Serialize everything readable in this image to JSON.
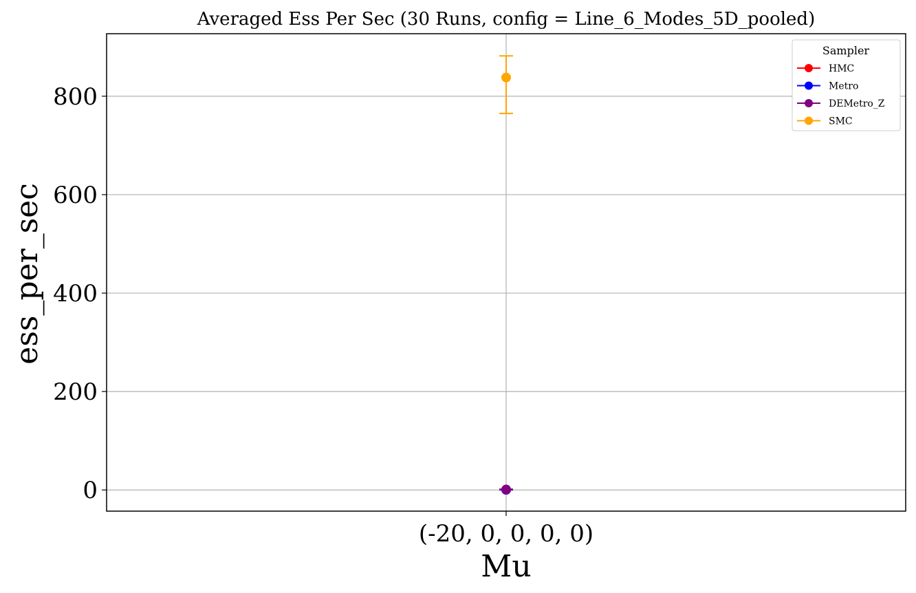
{
  "chart_data": {
    "type": "scatter",
    "title": "Averaged Ess Per Sec (30 Runs, config = Line_6_Modes_5D_pooled)",
    "xlabel": "Mu",
    "ylabel": "ess_per_sec",
    "categories": [
      "(-20, 0, 0, 0, 0)"
    ],
    "ylim": [
      -43,
      927
    ],
    "yticks": [
      0,
      200,
      400,
      600,
      800
    ],
    "grid": true,
    "legend": {
      "title": "Sampler",
      "placement": "top-right",
      "entries": [
        "HMC",
        "Metro",
        "DEMetro_Z",
        "SMC"
      ]
    },
    "series": [
      {
        "name": "HMC",
        "color": "#ff0000",
        "values": [
          0.5
        ],
        "err_low": [
          0.4
        ],
        "err_high": [
          0.6
        ]
      },
      {
        "name": "Metro",
        "color": "#0000ff",
        "values": [
          0.3
        ],
        "err_low": [
          0.2
        ],
        "err_high": [
          0.4
        ]
      },
      {
        "name": "DEMetro_Z",
        "color": "#800080",
        "values": [
          1.0
        ],
        "err_low": [
          0.5
        ],
        "err_high": [
          1.5
        ]
      },
      {
        "name": "SMC",
        "color": "#ffa500",
        "values": [
          838
        ],
        "err_low": [
          765
        ],
        "err_high": [
          882
        ]
      }
    ]
  }
}
